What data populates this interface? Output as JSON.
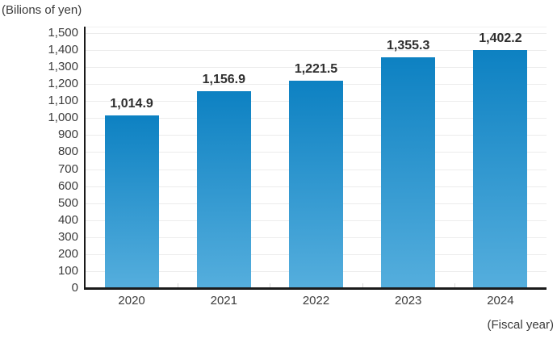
{
  "chart": {
    "unit_label": "(Bilions of yen)",
    "fiscal_label": "(Fiscal year)"
  },
  "chart_data": {
    "type": "bar",
    "title": "(Bilions of yen)",
    "categories": [
      "2020",
      "2021",
      "2022",
      "2023",
      "2024"
    ],
    "values": [
      1014.9,
      1156.9,
      1221.5,
      1355.3,
      1402.2
    ],
    "value_labels": [
      "1,014.9",
      "1,156.9",
      "1,221.5",
      "1,355.3",
      "1,402.2"
    ],
    "xlabel": "(Fiscal year)",
    "ylabel": "(Bilions of yen)",
    "ylim": [
      0,
      1500
    ],
    "ytick_step": 100,
    "grid": true,
    "legend": "none",
    "colors": {
      "bar_gradient_top": "#0d81c2",
      "bar_gradient_bottom": "#55aedd",
      "axis": "#1a1a1a",
      "gridline": "#ececec",
      "tick_text": "#3c3c3c",
      "value_label_text": "#2e2e2e"
    }
  }
}
